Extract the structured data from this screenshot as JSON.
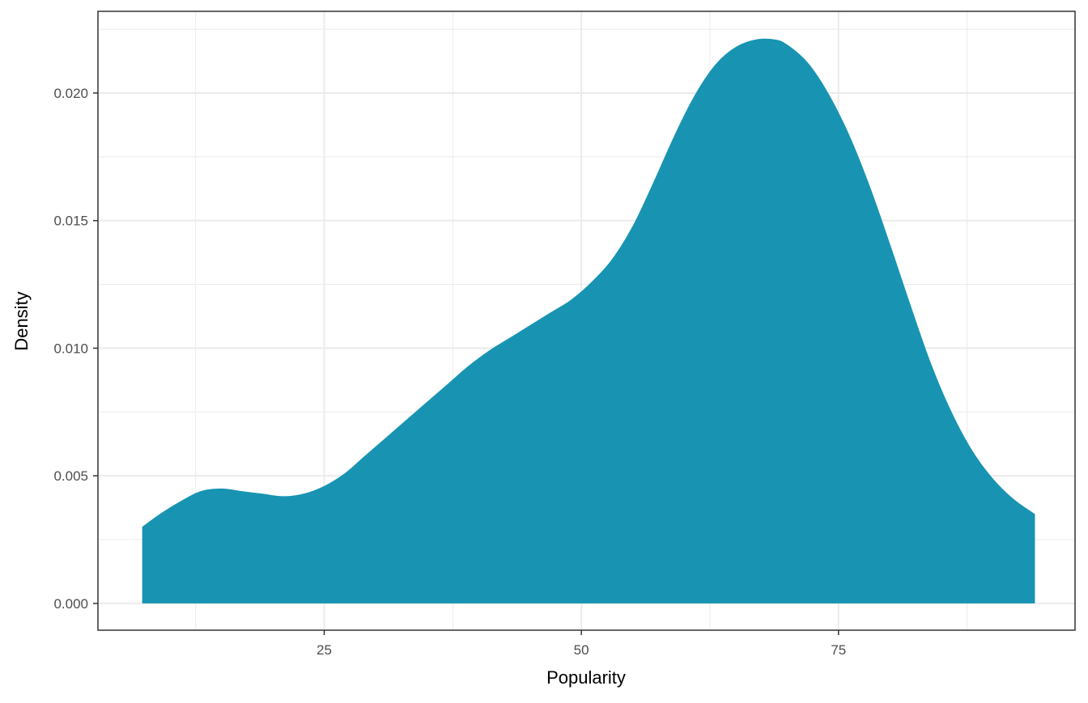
{
  "chart_data": {
    "type": "area",
    "title": "",
    "xlabel": "Popularity",
    "ylabel": "Density",
    "xlim": [
      3,
      98
    ],
    "ylim": [
      -0.00105,
      0.0232
    ],
    "x_ticks": [
      25,
      50,
      75
    ],
    "x_tick_labels": [
      "25",
      "50",
      "75"
    ],
    "x_minor_ticks": [
      12.5,
      37.5,
      62.5,
      87.5
    ],
    "y_ticks": [
      0.0,
      0.005,
      0.01,
      0.015,
      0.02
    ],
    "y_tick_labels": [
      "0.000",
      "0.005",
      "0.010",
      "0.015",
      "0.020"
    ],
    "y_minor_ticks": [
      0.0025,
      0.0075,
      0.0125,
      0.0175,
      0.0225
    ],
    "grid": true,
    "legend": "none",
    "series": [
      {
        "fill_color": "#1894b2",
        "x": [
          7.3,
          9,
          11,
          13,
          15,
          17,
          19,
          21,
          23,
          25,
          27,
          29,
          31,
          33,
          35,
          37,
          39,
          41,
          43,
          45,
          47,
          49,
          51,
          53,
          55,
          57,
          59,
          61,
          63,
          65,
          67,
          68.8,
          70,
          72,
          74,
          76,
          78,
          80,
          82,
          84,
          86,
          88,
          90,
          92,
          94.1
        ],
        "y": [
          0.003,
          0.0035,
          0.004,
          0.0044,
          0.0045,
          0.0044,
          0.0043,
          0.0042,
          0.0043,
          0.0046,
          0.0051,
          0.0058,
          0.0065,
          0.0072,
          0.0079,
          0.0086,
          0.0093,
          0.0099,
          0.0104,
          0.0109,
          0.0114,
          0.0119,
          0.0126,
          0.0135,
          0.0148,
          0.0165,
          0.0183,
          0.0199,
          0.0211,
          0.0218,
          0.0221,
          0.0221,
          0.0219,
          0.0212,
          0.02,
          0.0184,
          0.0164,
          0.0141,
          0.0117,
          0.0094,
          0.0075,
          0.006,
          0.0049,
          0.0041,
          0.0035
        ]
      }
    ]
  }
}
